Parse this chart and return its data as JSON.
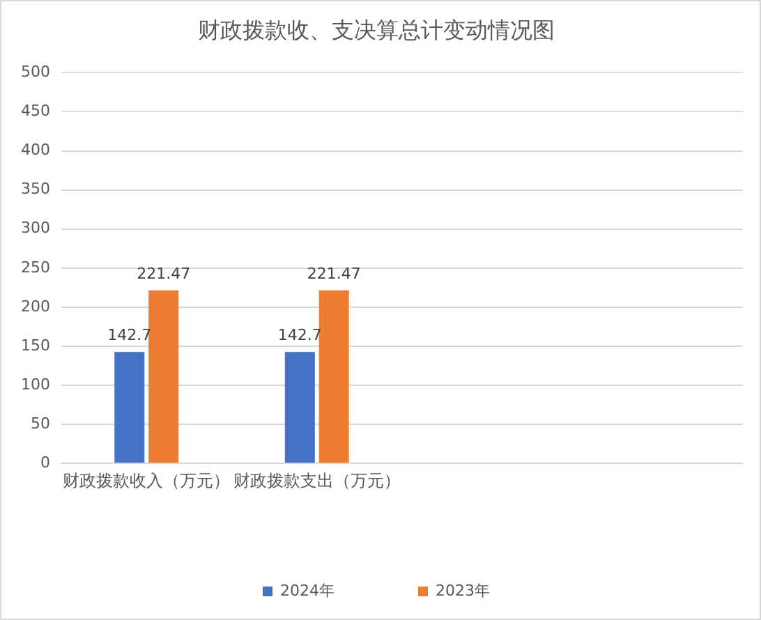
{
  "chart_data": {
    "type": "bar",
    "title": "财政拨款收、支决算总计变动情况图",
    "categories": [
      "财政拨款收入（万元）",
      "财政拨款支出（万元）",
      null,
      null
    ],
    "series": [
      {
        "name": "2024年",
        "color": "#4472c4",
        "values": [
          142.7,
          142.7,
          null,
          null
        ]
      },
      {
        "name": "2023年",
        "color": "#ed7d31",
        "values": [
          221.47,
          221.47,
          null,
          null
        ]
      }
    ],
    "ylim": [
      0,
      500
    ],
    "yticks": [
      0,
      50,
      100,
      150,
      200,
      250,
      300,
      350,
      400,
      450,
      500
    ],
    "grid": "y",
    "legend": "bottom",
    "data_labels": true
  }
}
